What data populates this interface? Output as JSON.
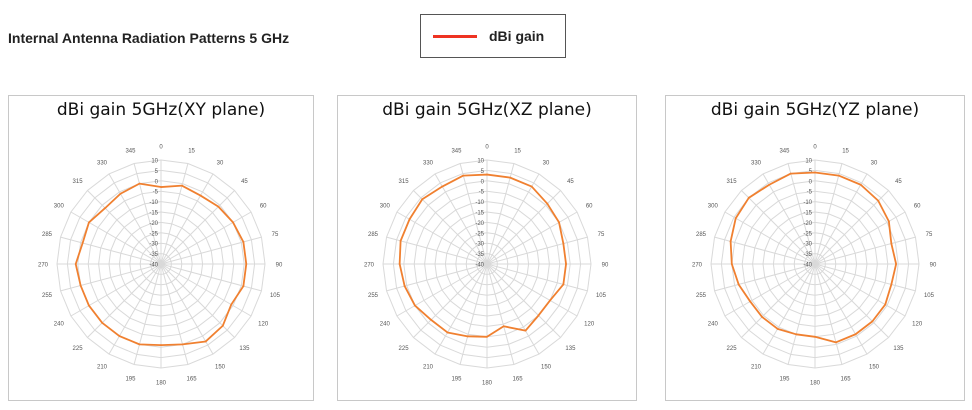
{
  "heading": "Internal Antenna Radiation Patterns 5 GHz",
  "legend": {
    "label": "dBi gain",
    "color": "#ee3322"
  },
  "chart_data": [
    {
      "type": "radar",
      "title": "dBi gain 5GHz(XY plane)",
      "angles": [
        0,
        15,
        30,
        45,
        60,
        75,
        90,
        105,
        120,
        135,
        150,
        165,
        180,
        195,
        210,
        225,
        240,
        255,
        270,
        285,
        300,
        315,
        330,
        345
      ],
      "radial_ticks": [
        10,
        5,
        0,
        -5,
        -10,
        -15,
        -20,
        -25,
        -30,
        -35,
        -40
      ],
      "rlim": [
        -40,
        10
      ],
      "series": [
        {
          "name": "dBi gain",
          "color": "#f08030",
          "values": [
            -3,
            -1,
            -2,
            -1,
            0,
            1,
            1,
            1,
            -1,
            2,
            3,
            0,
            -1,
            0,
            0,
            0,
            0,
            0,
            1,
            -1,
            0,
            -2,
            -1,
            0
          ]
        }
      ],
      "grid": true
    },
    {
      "type": "radar",
      "title": "dBi gain 5GHz(XZ plane)",
      "angles": [
        0,
        15,
        30,
        45,
        60,
        75,
        90,
        105,
        120,
        135,
        150,
        165,
        180,
        195,
        210,
        225,
        240,
        255,
        270,
        285,
        300,
        315,
        330,
        345
      ],
      "radial_ticks": [
        10,
        5,
        0,
        -5,
        -10,
        -15,
        -20,
        -25,
        -30,
        -35,
        -40
      ],
      "rlim": [
        -40,
        10
      ],
      "series": [
        {
          "name": "dBi gain",
          "color": "#f08030",
          "values": [
            3,
            3,
            3,
            1,
            0,
            -2,
            -2,
            -2,
            -5,
            -5,
            -3,
            -9,
            -5,
            -4,
            -2,
            -2,
            0,
            1,
            2,
            3,
            3,
            4,
            3,
            4
          ]
        }
      ],
      "grid": true
    },
    {
      "type": "radar",
      "title": "dBi gain 5GHz(YZ plane)",
      "angles": [
        0,
        15,
        30,
        45,
        60,
        75,
        90,
        105,
        120,
        135,
        150,
        165,
        180,
        195,
        210,
        225,
        240,
        255,
        270,
        285,
        300,
        315,
        330,
        345
      ],
      "radial_ticks": [
        10,
        5,
        0,
        -5,
        -10,
        -15,
        -20,
        -25,
        -30,
        -35,
        -40
      ],
      "rlim": [
        -40,
        10
      ],
      "series": [
        {
          "name": "dBi gain",
          "color": "#f08030",
          "values": [
            4,
            4,
            4,
            3,
            1,
            -2,
            -1,
            -2,
            -1,
            -1,
            -1,
            -1,
            -5,
            -5,
            -4,
            -4,
            -4,
            -2,
            0,
            2,
            4,
            5,
            4,
            5
          ]
        }
      ],
      "grid": true
    }
  ]
}
